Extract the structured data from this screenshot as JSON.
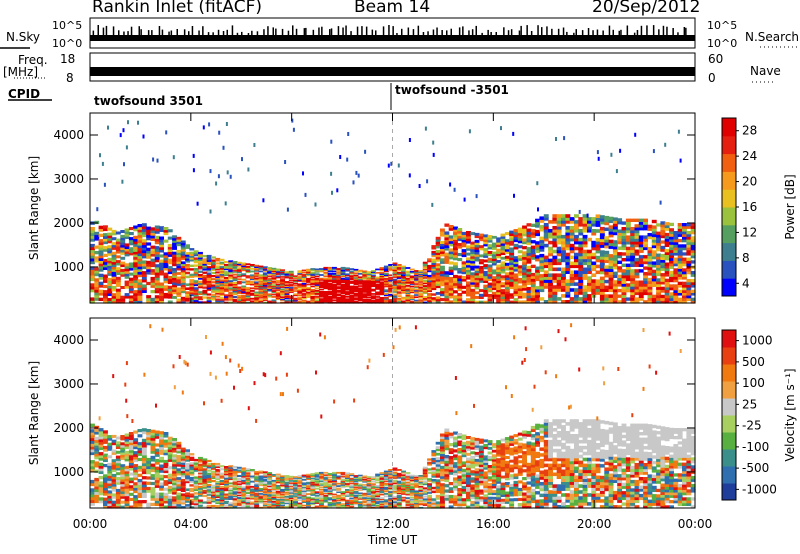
{
  "header": {
    "station": "Rankin Inlet (fitACF)",
    "beam": "Beam 14",
    "date": "20/Sep/2012"
  },
  "top_panels": {
    "nsky_label": "N.Sky",
    "nsky_ticks": [
      "10^5",
      "10^0"
    ],
    "nsearch_label": "N.Search",
    "nsearch_ticks": [
      "10^5",
      "10^0"
    ],
    "freq_label": "Freq.",
    "freq_unit": "[MHz]",
    "freq_ticks": [
      "18",
      "8"
    ],
    "nave_label": "Nave",
    "nave_ticks": [
      "60",
      "0"
    ],
    "cpid_label": "CPID",
    "cpid_segments": [
      "twofsound 3501",
      "twofsound -3501"
    ]
  },
  "chart_data": [
    {
      "type": "heatmap",
      "name": "power-panel",
      "ylabel": "Slant Range [km]",
      "y_ticks": [
        "1000",
        "2000",
        "3000",
        "4000"
      ],
      "ylim": [
        180,
        4500
      ],
      "xlim": [
        0,
        24
      ],
      "x_ticks": [
        "00:00",
        "04:00",
        "08:00",
        "12:00",
        "16:00",
        "20:00",
        "00:00"
      ],
      "colorbar": {
        "label": "Power [dB]",
        "ticks": [
          "28",
          "24",
          "20",
          "16",
          "12",
          "8",
          "4"
        ],
        "range": [
          0,
          30
        ],
        "colors": [
          "#0000ff",
          "#2a52be",
          "#3d7f8f",
          "#55a060",
          "#9ac23c",
          "#e8c020",
          "#f59a1c",
          "#f06010",
          "#e52010",
          "#e00000"
        ]
      }
    },
    {
      "type": "heatmap",
      "name": "velocity-panel",
      "ylabel": "Slant Range [km]",
      "y_ticks": [
        "1000",
        "2000",
        "3000",
        "4000"
      ],
      "ylim": [
        180,
        4500
      ],
      "xlim": [
        0,
        24
      ],
      "x_ticks": [
        "00:00",
        "04:00",
        "08:00",
        "12:00",
        "16:00",
        "20:00",
        "00:00"
      ],
      "xlabel": "Time UT",
      "colorbar": {
        "label": "Velocity [m s⁻¹]",
        "ticks": [
          "1000",
          "500",
          "100",
          "25",
          "-25",
          "-100",
          "-500",
          "-1000"
        ],
        "colors": [
          "#1f3d9a",
          "#2f6fb0",
          "#3a8f8a",
          "#58b040",
          "#a8d060",
          "#c8c8c8",
          "#f0a040",
          "#f07a10",
          "#e84010",
          "#e01010"
        ]
      }
    }
  ]
}
